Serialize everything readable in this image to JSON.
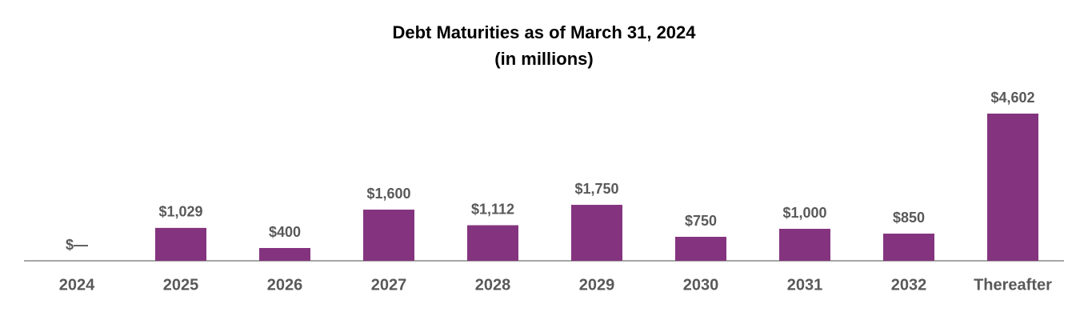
{
  "chart_data": {
    "type": "bar",
    "title": "Debt Maturities as of March 31, 2024",
    "subtitle": "(in millions)",
    "categories": [
      "2024",
      "2025",
      "2026",
      "2027",
      "2028",
      "2029",
      "2030",
      "2031",
      "2032",
      "Thereafter"
    ],
    "values": [
      0,
      1029,
      400,
      1600,
      1112,
      1750,
      750,
      1000,
      850,
      4602
    ],
    "value_labels": [
      "$—",
      "$1,029",
      "$400",
      "$1,600",
      "$1,112",
      "$1,750",
      "$750",
      "$1,000",
      "$850",
      "$4,602"
    ],
    "color": "#84347e"
  }
}
